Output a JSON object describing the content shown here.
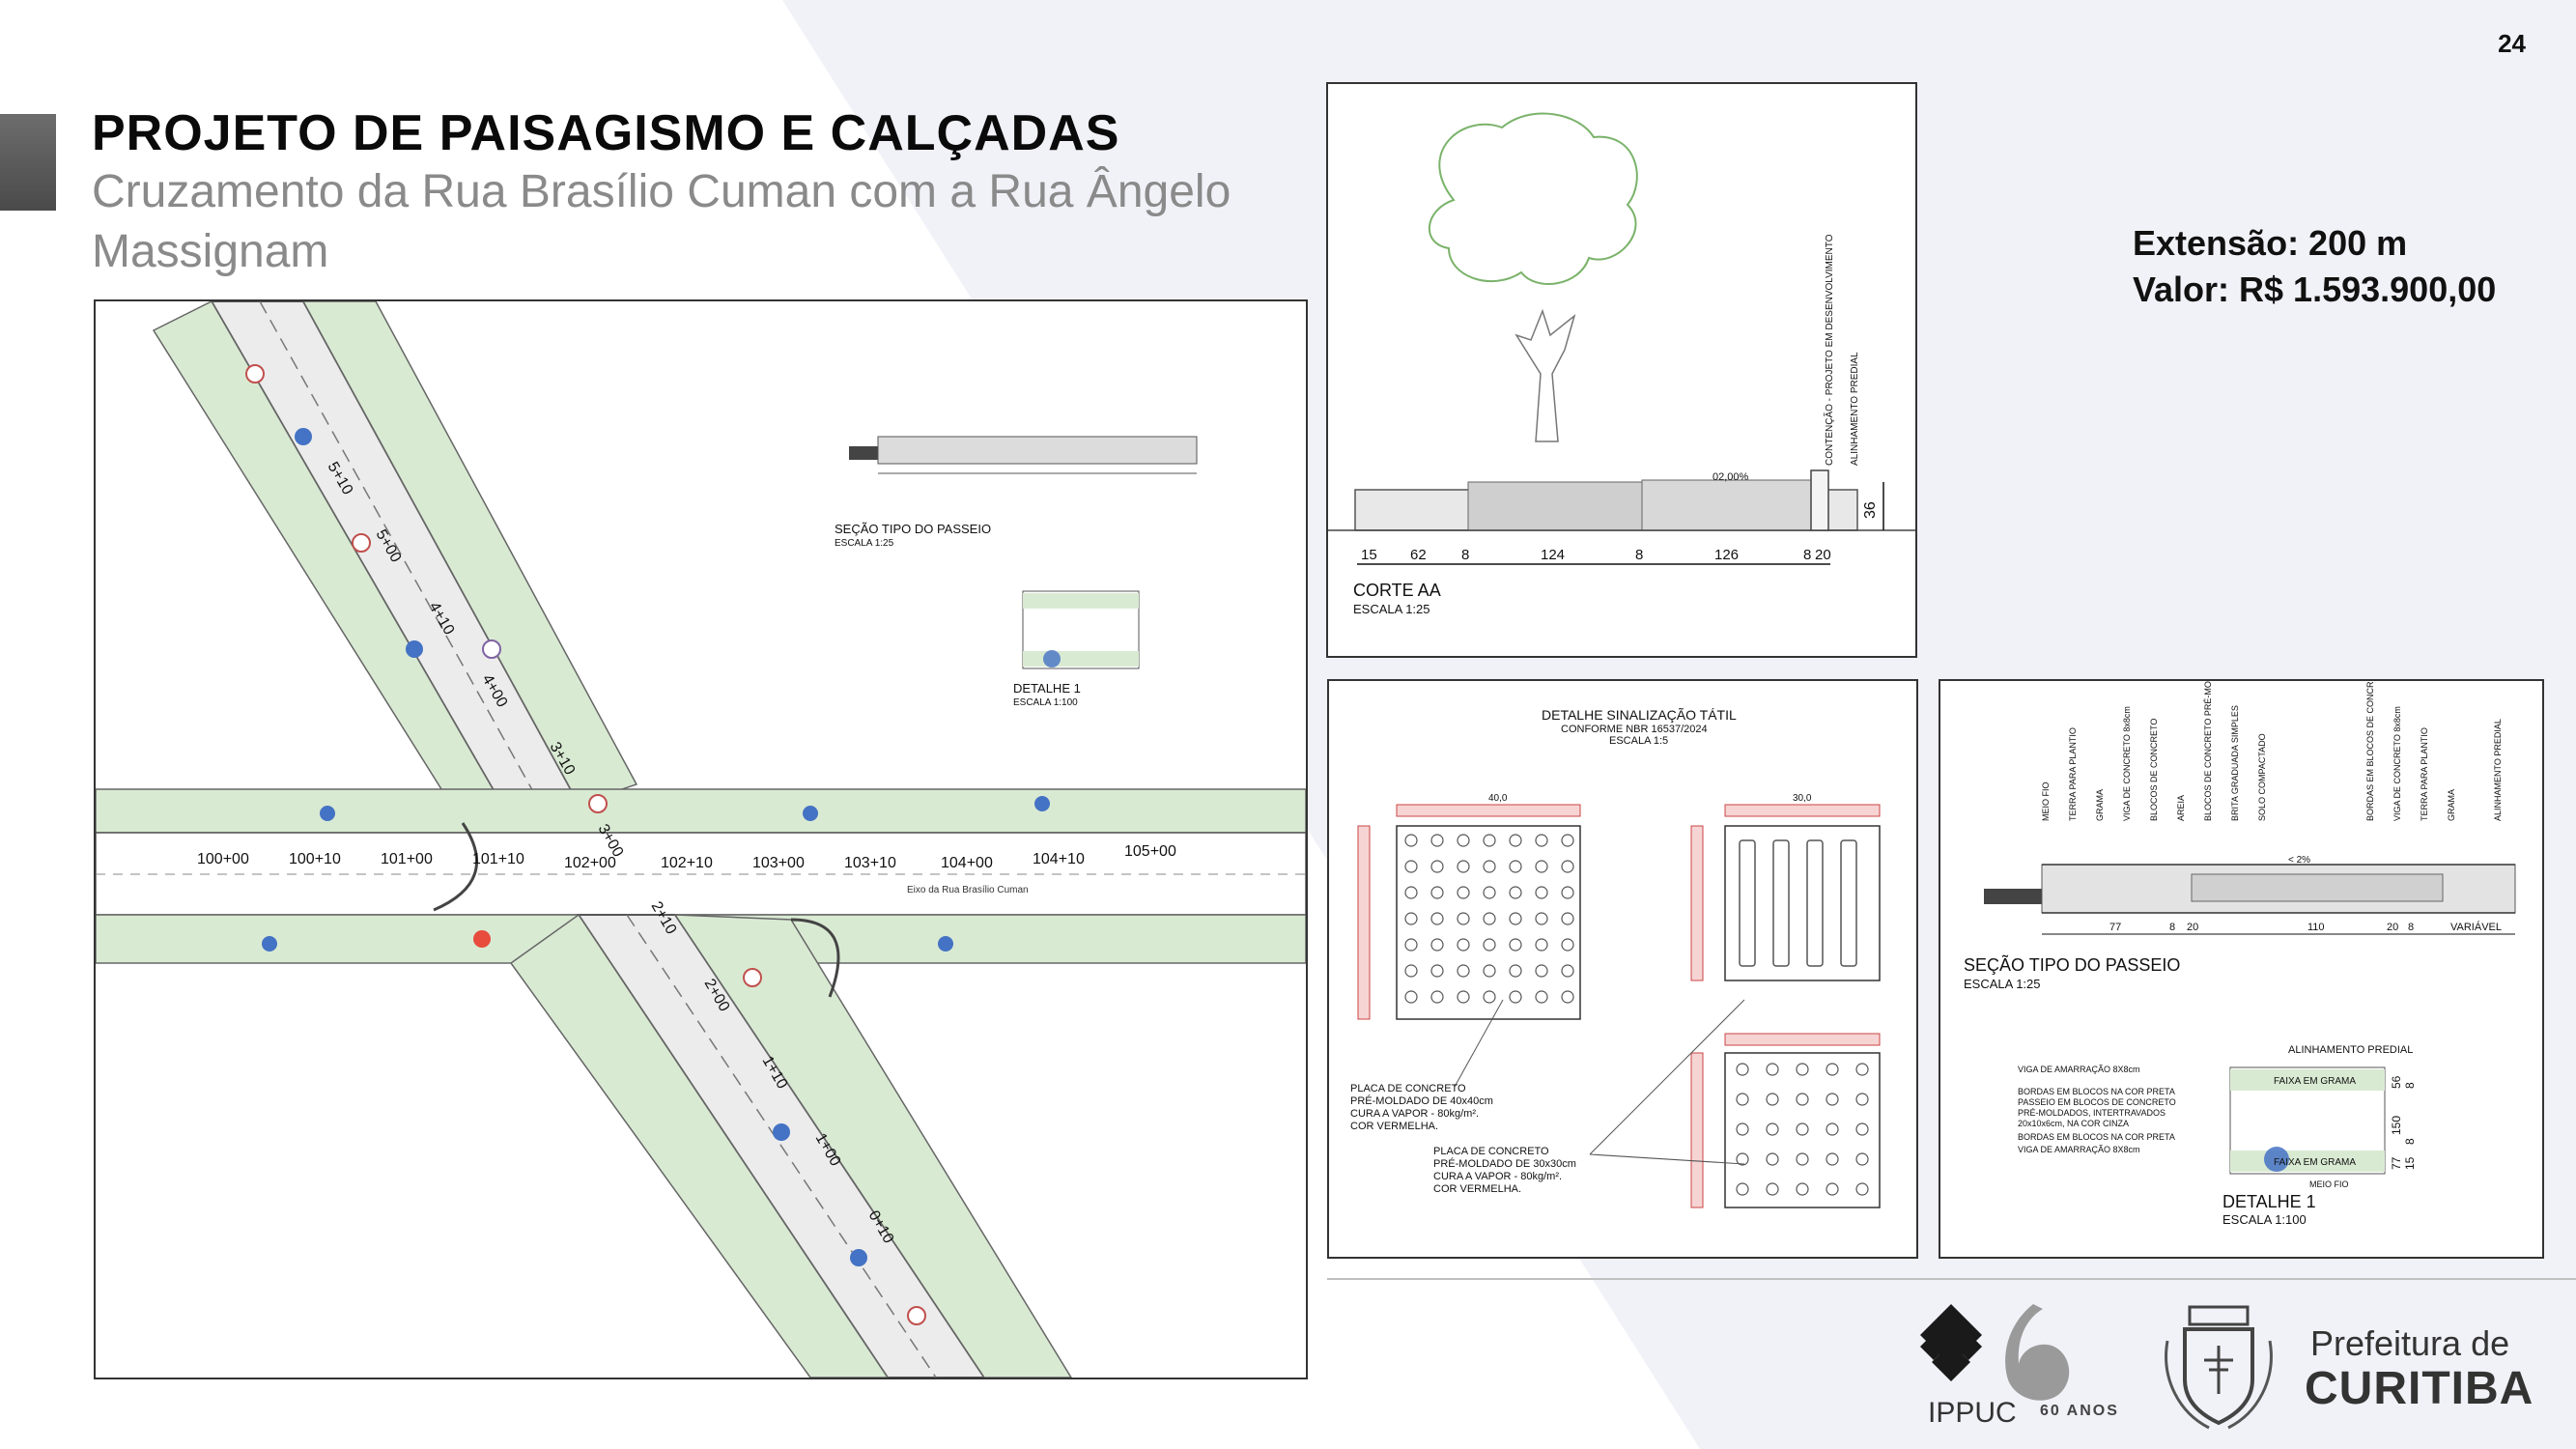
{
  "page_number": "24",
  "header": {
    "title": "PROJETO DE PAISAGISMO E CALÇADAS",
    "subtitle": "Cruzamento da Rua Brasílio Cuman com a Rua Ângelo Massignam"
  },
  "info": {
    "extensao": "Extensão: 200 m",
    "valor": "Valor: R$ 1.593.900,00"
  },
  "plan": {
    "stations_top": [
      "100+00",
      "100+10",
      "101+00",
      "101+10",
      "102+00",
      "102+10",
      "103+00",
      "103+10",
      "104+00",
      "104+10",
      "105+00"
    ],
    "stations_upper_arm": [
      "5+10",
      "5+00",
      "4+10",
      "4+00",
      "3+10"
    ],
    "stations_lower_arm": [
      "3+00",
      "2+10",
      "2+00",
      "1+10",
      "1+00",
      "0+10"
    ],
    "street_label": "Eixo da Rua Brasílio Cuman",
    "inset_section_title": "SEÇÃO TIPO DO PASSEIO",
    "inset_section_scale": "ESCALA 1:25",
    "inset_detail_title": "DETALHE 1",
    "inset_detail_scale": "ESCALA 1:100"
  },
  "corte": {
    "title": "CORTE AA",
    "scale": "ESCALA 1:25",
    "slope": "02,00%",
    "dims": [
      "15",
      "62",
      "8",
      "124",
      "8",
      "126",
      "8",
      "20"
    ],
    "height": "36",
    "label_contencao": "CONTENÇÃO - PROJETO EM DESENVOLVIMENTO",
    "label_alinhamento": "ALINHAMENTO PREDIAL"
  },
  "tatil": {
    "title": "DETALHE SINALIZAÇÃO TÁTIL",
    "norm": "CONFORME NBR 16537/2024",
    "scale": "ESCALA 1:5",
    "dim_a": "40,0",
    "dim_b": "30,0",
    "note1": [
      "PLACA DE CONCRETO",
      "PRÉ-MOLDADO DE 40x40cm",
      "CURA A VAPOR - 80kg/m².",
      "COR VERMELHA."
    ],
    "note2": [
      "PLACA DE CONCRETO",
      "PRÉ-MOLDADO DE 30x30cm",
      "CURA A VAPOR - 80kg/m².",
      "COR VERMELHA."
    ]
  },
  "secao": {
    "title": "SEÇÃO TIPO DO PASSEIO",
    "scale": "ESCALA 1:25",
    "dims": [
      "77",
      "8",
      "20",
      "110",
      "20",
      "8",
      "VARIÁVEL"
    ],
    "slope": "< 2%",
    "layer_labels": [
      "MEIO FIO",
      "TERRA PARA PLANTIO",
      "GRAMA",
      "VIGA DE CONCRETO 8x8cm",
      "BLOCOS DE CONCRETO",
      "AREIA",
      "BLOCOS DE CONCRETO PRÉ-MOLDADOS INTERTRAVADOS",
      "BRITA GRADUADA SIMPLES",
      "SOLO COMPACTADO",
      "BORDAS EM BLOCOS DE CONCRETO",
      "VIGA DE CONCRETO 8x8cm",
      "TERRA PARA PLANTIO",
      "GRAMA",
      "ALINHAMENTO PREDIAL"
    ],
    "detail_title": "DETALHE 1",
    "detail_scale": "ESCALA 1:100",
    "detail_top": "ALINHAMENTO PREDIAL",
    "detail_notes": [
      "VIGA DE AMARRAÇÃO 8X8cm",
      "BORDAS EM BLOCOS NA COR PRETA",
      "PASSEIO EM BLOCOS DE CONCRETO",
      "PRÉ-MOLDADOS, INTERTRAVADOS",
      "20x10x6cm, NA COR CINZA",
      "BORDAS EM BLOCOS NA COR PRETA",
      "VIGA DE AMARRAÇÃO 8X8cm"
    ],
    "faixa_top": "FAIXA EM GRAMA",
    "faixa_bottom": "FAIXA EM GRAMA",
    "meio_fio": "MEIO FIO",
    "detail_dims": [
      "56",
      "8",
      "150",
      "8",
      "77",
      "15"
    ]
  },
  "footer": {
    "ippuc": "IPPUC",
    "anos": "60 ANOS",
    "prefeitura_line1": "Prefeitura de",
    "prefeitura_line2": "CURITIBA"
  }
}
